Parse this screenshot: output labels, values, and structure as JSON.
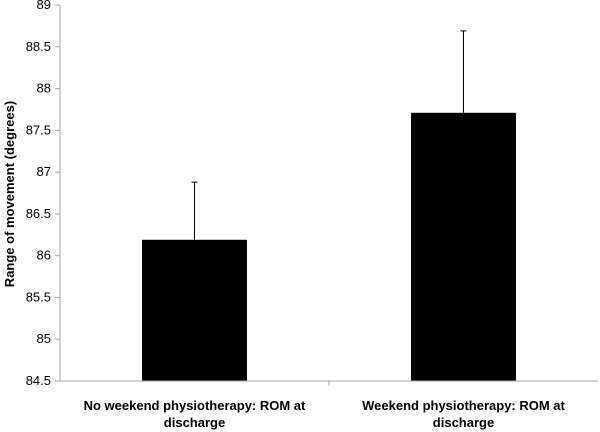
{
  "chart_data": {
    "type": "bar",
    "title": "",
    "xlabel": "",
    "ylabel": "Range of movement (degrees)",
    "ylim": [
      84.5,
      89
    ],
    "yticks": [
      "84.5",
      "85",
      "85.5",
      "86",
      "86.5",
      "87",
      "87.5",
      "88",
      "88.5",
      "89"
    ],
    "grid": false,
    "legend": "none",
    "categories": [
      [
        "No weekend physiotherapy: ROM at",
        "discharge"
      ],
      [
        "Weekend physiotherapy: ROM at",
        "discharge"
      ]
    ],
    "values": [
      86.19,
      87.71
    ],
    "error_upper": [
      0.69,
      0.98
    ],
    "bar_color": "#000000",
    "axis_color": "#a6a6a6"
  }
}
